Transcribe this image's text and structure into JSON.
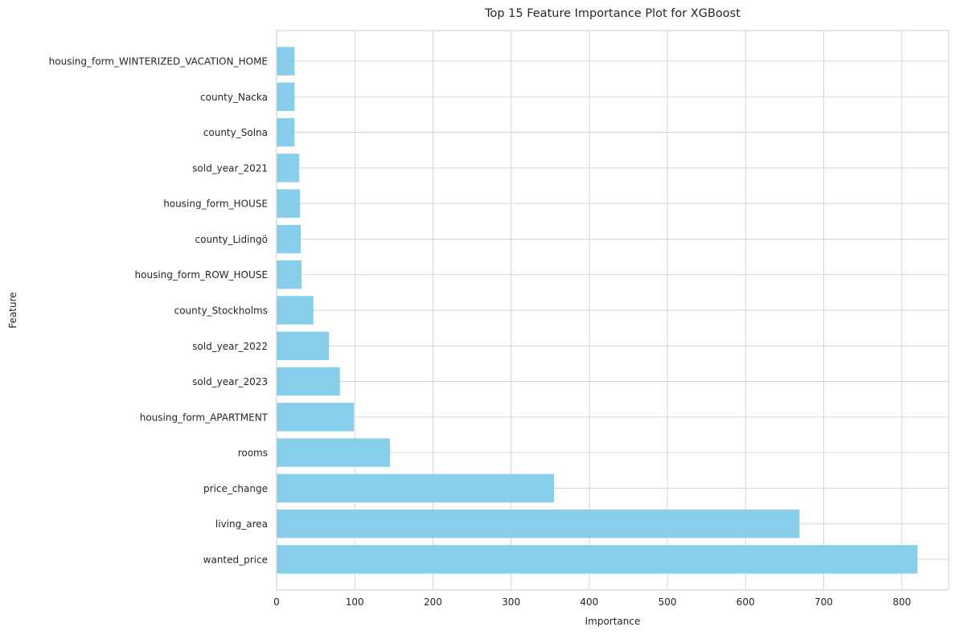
{
  "chart_data": {
    "type": "bar",
    "orientation": "horizontal",
    "title": "Top 15 Feature Importance Plot for XGBoost",
    "xlabel": "Importance",
    "ylabel": "Feature",
    "xlim": [
      0,
      860
    ],
    "xticks": [
      0,
      100,
      200,
      300,
      400,
      500,
      600,
      700,
      800
    ],
    "grid": true,
    "bar_color": "#87ceeb",
    "categories": [
      "wanted_price",
      "living_area",
      "price_change",
      "rooms",
      "housing_form_APARTMENT",
      "sold_year_2023",
      "sold_year_2022",
      "county_Stockholms",
      "housing_form_ROW_HOUSE",
      "county_Lidingö",
      "housing_form_HOUSE",
      "sold_year_2021",
      "county_Solna",
      "county_Nacka",
      "housing_form_WINTERIZED_VACATION_HOME"
    ],
    "values": [
      820,
      669,
      355,
      145,
      99,
      81,
      67,
      47,
      32,
      31,
      30,
      29,
      23,
      23,
      23
    ]
  }
}
